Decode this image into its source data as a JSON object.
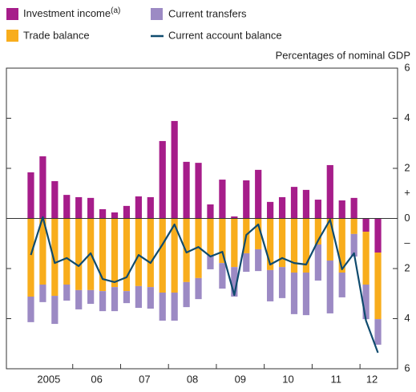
{
  "chart_data": {
    "type": "stacked-bar-line",
    "unit_label": "Percentages of nominal GDP",
    "years": [
      "2005",
      "06",
      "07",
      "08",
      "09",
      "10",
      "11",
      "12"
    ],
    "quarters_per_year": 4,
    "series": [
      {
        "name": "Investment income",
        "name_note": "(a)",
        "color": "#a61d8a",
        "kind": "bar",
        "values": [
          1.84,
          2.48,
          1.49,
          0.94,
          0.85,
          0.82,
          0.37,
          0.24,
          0.5,
          0.88,
          0.85,
          3.09,
          3.89,
          2.26,
          2.22,
          0.56,
          1.55,
          0.08,
          1.52,
          1.94,
          0.66,
          0.85,
          1.26,
          1.14,
          0.75,
          2.13,
          0.72,
          0.82,
          -0.53,
          -1.36
        ]
      },
      {
        "name": "Trade balance",
        "color": "#f8ad1c",
        "kind": "bar",
        "values": [
          -3.12,
          -2.64,
          -3.09,
          -2.64,
          -2.86,
          -2.86,
          -2.9,
          -2.74,
          -2.9,
          -2.7,
          -2.74,
          -2.96,
          -2.96,
          -2.54,
          -2.38,
          -1.46,
          -1.78,
          -1.94,
          -1.39,
          -1.23,
          -2.06,
          -1.94,
          -2.16,
          -2.16,
          -1.04,
          -1.68,
          -2.16,
          -0.62,
          -2.11,
          -2.66
        ]
      },
      {
        "name": "Current transfers",
        "color": "#9c8ac4",
        "kind": "bar",
        "values": [
          -1.02,
          -0.7,
          -1.12,
          -0.64,
          -0.77,
          -0.55,
          -0.8,
          -0.96,
          -0.48,
          -0.87,
          -0.86,
          -1.12,
          -1.12,
          -1.0,
          -0.84,
          -0.57,
          -1.02,
          -1.18,
          -0.74,
          -0.87,
          -1.25,
          -1.24,
          -1.66,
          -1.7,
          -1.44,
          -2.11,
          -0.99,
          -0.9,
          -1.38,
          -1.02
        ]
      },
      {
        "name": "Current account balance",
        "color": "#0f4b6e",
        "kind": "line",
        "values": [
          -1.46,
          0.05,
          -1.78,
          -1.58,
          -1.9,
          -1.39,
          -2.42,
          -2.54,
          -2.35,
          -1.46,
          -1.78,
          -1.04,
          -0.24,
          -1.36,
          -1.14,
          -1.52,
          -1.33,
          -3.06,
          -0.66,
          -0.24,
          -1.84,
          -1.58,
          -1.78,
          -1.84,
          -0.88,
          -0.05,
          -2.03,
          -1.39,
          -4.08,
          -5.36
        ]
      }
    ],
    "ylim": [
      -6,
      6
    ],
    "yticks": [
      6,
      4,
      2,
      0,
      {
        "value": -2,
        "label": "2"
      },
      {
        "value": -4,
        "label": "4"
      },
      {
        "value": -6,
        "label": "6"
      }
    ],
    "sign_labels": [
      "+",
      "–"
    ]
  }
}
